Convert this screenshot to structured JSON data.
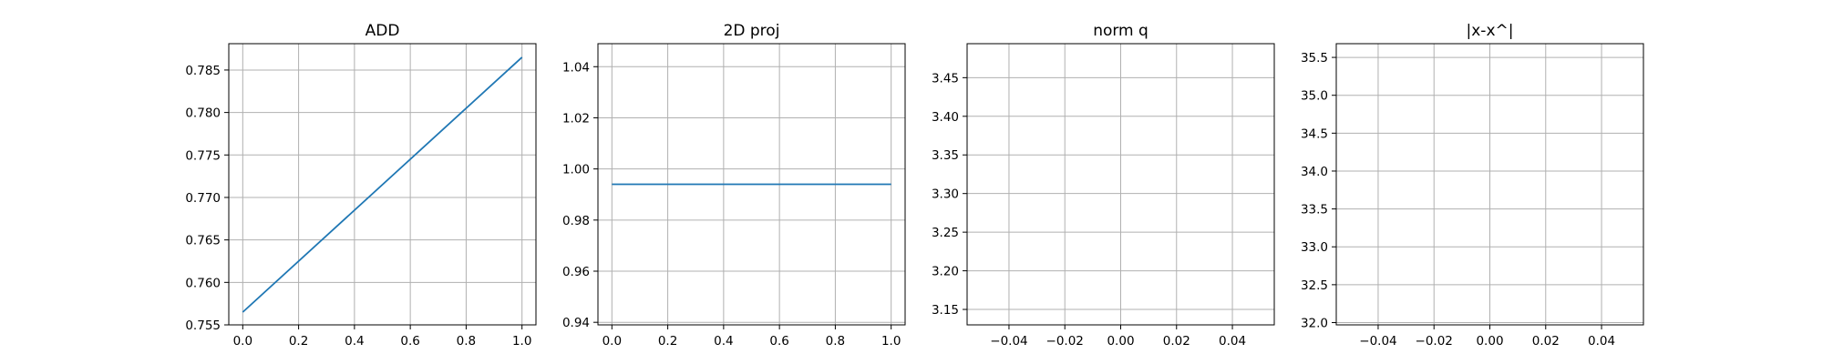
{
  "chart_data": [
    {
      "type": "line",
      "title": "ADD",
      "xlabel": "",
      "ylabel": "",
      "xlim": [
        -0.05,
        1.05
      ],
      "ylim": [
        0.755,
        0.7881
      ],
      "x_ticks": [
        0.0,
        0.2,
        0.4,
        0.6,
        0.8,
        1.0
      ],
      "x_tick_labels": [
        "0.0",
        "0.2",
        "0.4",
        "0.6",
        "0.8",
        "1.0"
      ],
      "y_ticks": [
        0.755,
        0.76,
        0.765,
        0.77,
        0.775,
        0.78,
        0.785
      ],
      "y_tick_labels": [
        "0.755",
        "0.760",
        "0.765",
        "0.770",
        "0.775",
        "0.780",
        "0.785"
      ],
      "grid": true,
      "series": [
        {
          "x": [
            0.0,
            1.0
          ],
          "y": [
            0.7565,
            0.7865
          ],
          "color": "#1f77b4"
        }
      ]
    },
    {
      "type": "line",
      "title": "2D proj",
      "xlabel": "",
      "ylabel": "",
      "xlim": [
        -0.05,
        1.05
      ],
      "ylim": [
        0.939,
        1.049
      ],
      "x_ticks": [
        0.0,
        0.2,
        0.4,
        0.6,
        0.8,
        1.0
      ],
      "x_tick_labels": [
        "0.0",
        "0.2",
        "0.4",
        "0.6",
        "0.8",
        "1.0"
      ],
      "y_ticks": [
        0.94,
        0.96,
        0.98,
        1.0,
        1.02,
        1.04
      ],
      "y_tick_labels": [
        "0.94",
        "0.96",
        "0.98",
        "1.00",
        "1.02",
        "1.04"
      ],
      "grid": true,
      "series": [
        {
          "x": [
            0.0,
            1.0
          ],
          "y": [
            0.994,
            0.994
          ],
          "color": "#1f77b4"
        }
      ]
    },
    {
      "type": "line",
      "title": "norm q",
      "xlabel": "",
      "ylabel": "",
      "xlim": [
        -0.055,
        0.055
      ],
      "ylim": [
        3.13,
        3.494
      ],
      "x_ticks": [
        -0.04,
        -0.02,
        0.0,
        0.02,
        0.04
      ],
      "x_tick_labels": [
        "−0.04",
        "−0.02",
        "0.00",
        "0.02",
        "0.04"
      ],
      "y_ticks": [
        3.15,
        3.2,
        3.25,
        3.3,
        3.35,
        3.4,
        3.45
      ],
      "y_tick_labels": [
        "3.15",
        "3.20",
        "3.25",
        "3.30",
        "3.35",
        "3.40",
        "3.45"
      ],
      "grid": true,
      "series": []
    },
    {
      "type": "line",
      "title": "|x-x^|",
      "xlabel": "",
      "ylabel": "",
      "xlim": [
        -0.055,
        0.055
      ],
      "ylim": [
        31.97,
        35.681
      ],
      "x_ticks": [
        -0.04,
        -0.02,
        0.0,
        0.02,
        0.04
      ],
      "x_tick_labels": [
        "−0.04",
        "−0.02",
        "0.00",
        "0.02",
        "0.04"
      ],
      "y_ticks": [
        32.0,
        32.5,
        33.0,
        33.5,
        34.0,
        34.5,
        35.0,
        35.5
      ],
      "y_tick_labels": [
        "32.0",
        "32.5",
        "33.0",
        "33.5",
        "34.0",
        "34.5",
        "35.0",
        "35.5"
      ],
      "grid": true,
      "series": []
    }
  ]
}
